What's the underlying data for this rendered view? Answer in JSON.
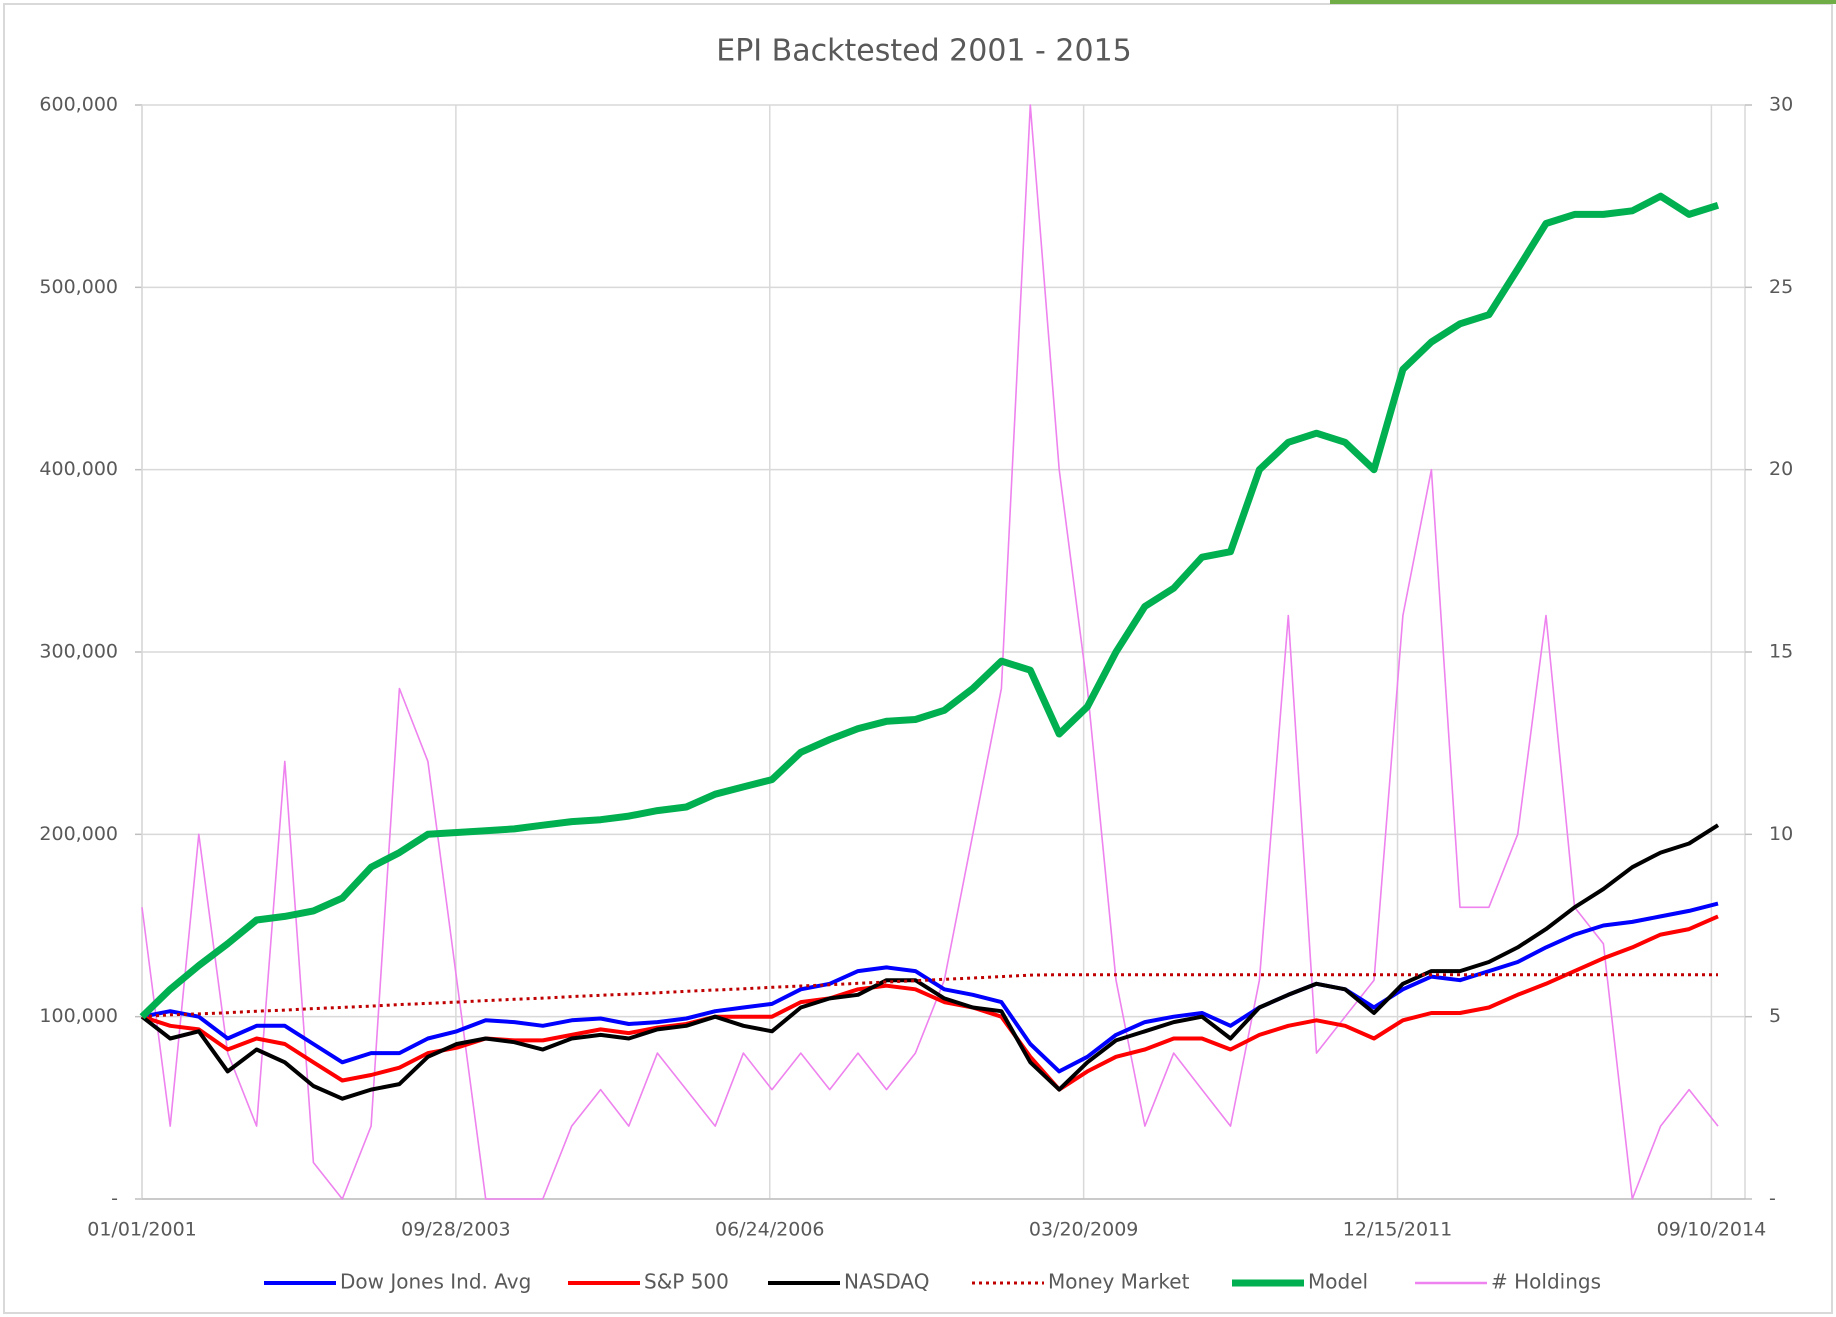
{
  "chart_data": {
    "type": "line",
    "title": "EPI Backtested 2001 - 2015",
    "x": [
      "01/01/2001",
      "04/01/2001",
      "07/01/2001",
      "10/01/2001",
      "01/01/2002",
      "04/01/2002",
      "07/01/2002",
      "10/01/2002",
      "01/01/2003",
      "04/01/2003",
      "07/01/2003",
      "10/01/2003",
      "01/01/2004",
      "04/01/2004",
      "07/01/2004",
      "10/01/2004",
      "01/01/2005",
      "04/01/2005",
      "07/01/2005",
      "10/01/2005",
      "01/01/2006",
      "04/01/2006",
      "07/01/2006",
      "10/01/2006",
      "01/01/2007",
      "04/01/2007",
      "07/01/2007",
      "10/01/2007",
      "01/01/2008",
      "04/01/2008",
      "07/01/2008",
      "10/01/2008",
      "01/01/2009",
      "04/01/2009",
      "07/01/2009",
      "10/01/2009",
      "01/01/2010",
      "04/01/2010",
      "07/01/2010",
      "10/01/2010",
      "01/01/2011",
      "04/01/2011",
      "07/01/2011",
      "10/01/2011",
      "01/01/2012",
      "04/01/2012",
      "07/01/2012",
      "10/01/2012",
      "01/01/2013",
      "04/01/2013",
      "07/01/2013",
      "10/01/2013",
      "01/01/2014",
      "04/01/2014",
      "07/01/2014",
      "10/01/2014"
    ],
    "xlim": [
      "01/01/2001",
      "12/26/2014"
    ],
    "xticks": [
      "01/01/2001",
      "09/28/2003",
      "06/24/2006",
      "03/20/2009",
      "12/15/2011",
      "09/10/2014"
    ],
    "ylim": [
      0,
      600000
    ],
    "yticks": [
      {
        "value": 0,
        "label": "-"
      },
      {
        "value": 100000,
        "label": "100,000"
      },
      {
        "value": 200000,
        "label": "200,000"
      },
      {
        "value": 300000,
        "label": "300,000"
      },
      {
        "value": 400000,
        "label": "400,000"
      },
      {
        "value": 500000,
        "label": "500,000"
      },
      {
        "value": 600000,
        "label": "600,000"
      }
    ],
    "y2lim": [
      0,
      30
    ],
    "y2ticks": [
      {
        "value": 0,
        "label": "-"
      },
      5,
      10,
      15,
      20,
      25,
      30
    ],
    "grid": true,
    "legend": "bottom",
    "series": [
      {
        "name": "Dow Jones Ind. Avg",
        "color": "#0000ff",
        "values": [
          100000,
          103000,
          100000,
          88000,
          95000,
          95000,
          85000,
          75000,
          80000,
          80000,
          88000,
          92000,
          98000,
          97000,
          95000,
          98000,
          99000,
          96000,
          97000,
          99000,
          103000,
          105000,
          107000,
          115000,
          118000,
          125000,
          127000,
          125000,
          115000,
          112000,
          108000,
          85000,
          70000,
          78000,
          90000,
          97000,
          100000,
          102000,
          95000,
          105000,
          112000,
          118000,
          115000,
          105000,
          115000,
          122000,
          120000,
          125000,
          130000,
          138000,
          145000,
          150000,
          152000,
          155000,
          158000,
          162000
        ]
      },
      {
        "name": "S&P 500",
        "color": "#ff0000",
        "values": [
          100000,
          95000,
          93000,
          82000,
          88000,
          85000,
          75000,
          65000,
          68000,
          72000,
          80000,
          83000,
          88000,
          87000,
          87000,
          90000,
          93000,
          91000,
          94000,
          96000,
          100000,
          100000,
          100000,
          108000,
          110000,
          115000,
          117000,
          115000,
          108000,
          105000,
          100000,
          78000,
          60000,
          70000,
          78000,
          82000,
          88000,
          88000,
          82000,
          90000,
          95000,
          98000,
          95000,
          88000,
          98000,
          102000,
          102000,
          105000,
          112000,
          118000,
          125000,
          132000,
          138000,
          145000,
          148000,
          155000
        ]
      },
      {
        "name": "NASDAQ",
        "color": "#000000",
        "values": [
          100000,
          88000,
          92000,
          70000,
          82000,
          75000,
          62000,
          55000,
          60000,
          63000,
          78000,
          85000,
          88000,
          86000,
          82000,
          88000,
          90000,
          88000,
          93000,
          95000,
          100000,
          95000,
          92000,
          105000,
          110000,
          112000,
          120000,
          120000,
          110000,
          105000,
          103000,
          75000,
          60000,
          75000,
          87000,
          92000,
          97000,
          100000,
          88000,
          105000,
          112000,
          118000,
          115000,
          102000,
          118000,
          125000,
          125000,
          130000,
          138000,
          148000,
          160000,
          170000,
          182000,
          190000,
          195000,
          205000
        ]
      },
      {
        "name": "Money Market",
        "color": "#c00000",
        "style": "dotted",
        "values": [
          100000,
          101000,
          101500,
          102200,
          103000,
          103600,
          104400,
          105100,
          105800,
          106600,
          107300,
          108000,
          108800,
          109500,
          110200,
          111000,
          111700,
          112400,
          113100,
          113900,
          114600,
          115300,
          116100,
          116800,
          117500,
          118300,
          119000,
          119700,
          120500,
          121200,
          122000,
          122800,
          123000,
          123000,
          123000,
          123000,
          123000,
          123000,
          123000,
          123000,
          123000,
          123000,
          123000,
          123000,
          123000,
          123000,
          123000,
          123000,
          123000,
          123000,
          123000,
          123000,
          123000,
          123000,
          123000,
          123000
        ]
      },
      {
        "name": "Model",
        "color": "#00b050",
        "values": [
          100000,
          115000,
          128000,
          140000,
          153000,
          155000,
          158000,
          165000,
          182000,
          190000,
          200000,
          201000,
          202000,
          203000,
          205000,
          207000,
          208000,
          210000,
          213000,
          215000,
          222000,
          226000,
          230000,
          245000,
          252000,
          258000,
          262000,
          263000,
          268000,
          280000,
          295000,
          290000,
          255000,
          270000,
          300000,
          325000,
          335000,
          352000,
          355000,
          400000,
          415000,
          420000,
          415000,
          400000,
          455000,
          470000,
          480000,
          485000,
          510000,
          535000,
          540000,
          540000,
          542000,
          550000,
          540000,
          545000
        ]
      },
      {
        "name": "# Holdings",
        "color": "#ee82ee",
        "axis": "y2",
        "values": [
          8,
          2,
          10,
          4,
          2,
          12,
          1,
          0,
          2,
          14,
          12,
          6,
          0,
          0,
          0,
          2,
          3,
          2,
          4,
          3,
          2,
          4,
          3,
          4,
          3,
          4,
          3,
          4,
          6,
          10,
          14,
          30,
          20,
          14,
          6,
          2,
          4,
          3,
          2,
          6,
          16,
          4,
          5,
          6,
          16,
          20,
          8,
          8,
          10,
          16,
          8,
          7,
          0,
          2,
          3,
          2
        ]
      }
    ]
  }
}
